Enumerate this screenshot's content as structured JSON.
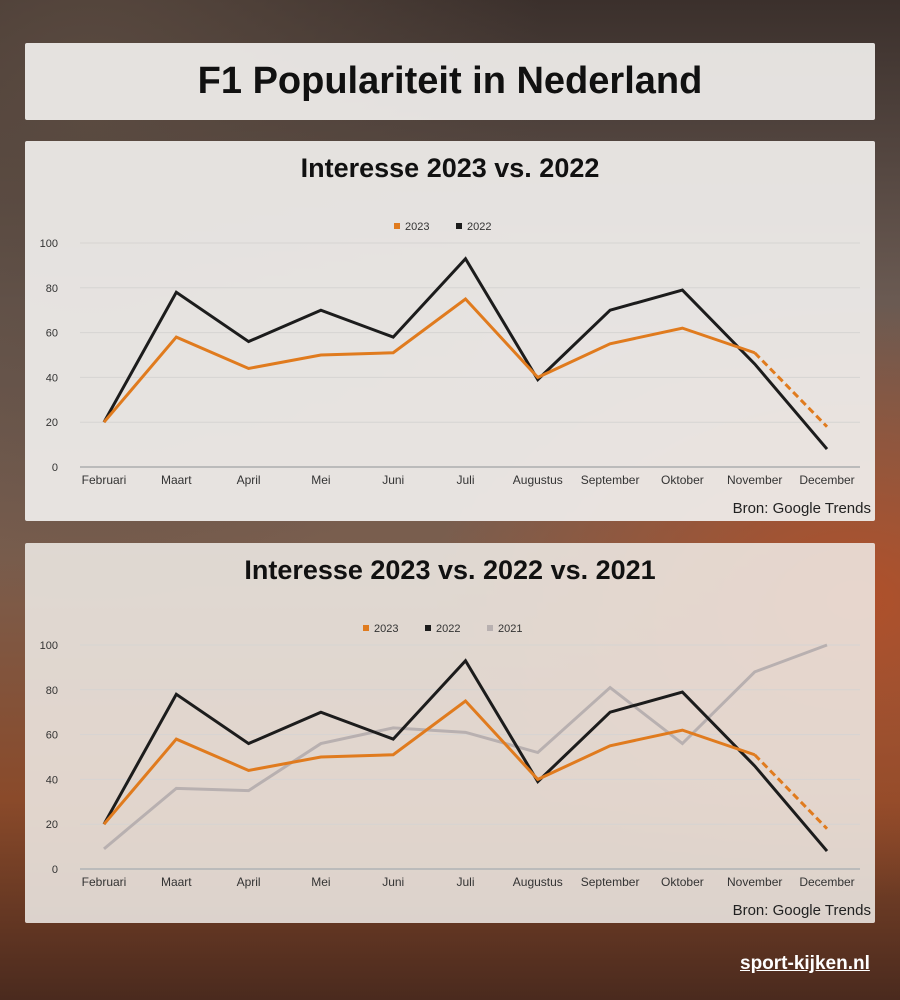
{
  "title": "F1 Populariteit in Nederland",
  "brand": "sport-kijken.nl",
  "colors": {
    "2023": "#e07b1e",
    "2022": "#1c1c1c",
    "2021": "#b8b0b0"
  },
  "chart_data": [
    {
      "type": "line",
      "title": "Interesse 2023 vs. 2022",
      "source": "Bron: Google Trends",
      "categories": [
        "Februari",
        "Maart",
        "April",
        "Mei",
        "Juni",
        "Juli",
        "Augustus",
        "September",
        "Oktober",
        "November",
        "December"
      ],
      "ylim": [
        0,
        100
      ],
      "yticks": [
        0,
        20,
        40,
        60,
        80,
        100
      ],
      "grid": true,
      "legend": "top-center",
      "series": [
        {
          "name": "2023",
          "values": [
            20,
            58,
            44,
            50,
            51,
            75,
            40,
            55,
            62,
            51,
            18
          ],
          "estimated_last": true
        },
        {
          "name": "2022",
          "values": [
            20,
            78,
            56,
            70,
            58,
            93,
            39,
            70,
            79,
            46,
            8
          ]
        }
      ]
    },
    {
      "type": "line",
      "title": "Interesse 2023 vs. 2022 vs. 2021",
      "source": "Bron: Google Trends",
      "categories": [
        "Februari",
        "Maart",
        "April",
        "Mei",
        "Juni",
        "Juli",
        "Augustus",
        "September",
        "Oktober",
        "November",
        "December"
      ],
      "ylim": [
        0,
        100
      ],
      "yticks": [
        0,
        20,
        40,
        60,
        80,
        100
      ],
      "grid": true,
      "legend": "top-center",
      "series": [
        {
          "name": "2023",
          "values": [
            20,
            58,
            44,
            50,
            51,
            75,
            40,
            55,
            62,
            51,
            18
          ],
          "estimated_last": true
        },
        {
          "name": "2022",
          "values": [
            20,
            78,
            56,
            70,
            58,
            93,
            39,
            70,
            79,
            46,
            8
          ]
        },
        {
          "name": "2021",
          "values": [
            9,
            36,
            35,
            56,
            63,
            61,
            52,
            81,
            56,
            88,
            100
          ]
        }
      ]
    }
  ]
}
